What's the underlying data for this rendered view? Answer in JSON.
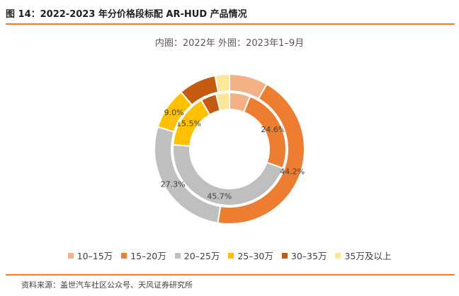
{
  "figure_title": "图 14：2022-2023 年分价格段标配 AR-HUD 产品情况",
  "source": "资料来源：盖世汽车社区公众号、天风证券研究所",
  "chart_data": {
    "type": "donut",
    "title": "内圈：2022年   外圈：2023年1–9月",
    "categories": [
      "10–15万",
      "15–20万",
      "20–25万",
      "25–30万",
      "30–35万",
      "35万及以上"
    ],
    "colors": [
      "#f4b183",
      "#ed7d31",
      "#bfbfbf",
      "#ffc000",
      "#c55a11",
      "#ffe699"
    ],
    "series": [
      {
        "ring": "inner",
        "values": [
          5.9,
          24.6,
          45.7,
          15.5,
          4.5,
          3.8
        ],
        "labels": [
          "",
          "24.6%",
          "45.7%",
          "15.5%",
          "",
          ""
        ]
      },
      {
        "ring": "outer",
        "values": [
          8.3,
          44.2,
          27.3,
          9.0,
          8.1,
          3.1
        ],
        "labels": [
          "",
          "44.2%",
          "27.3%",
          "9.0%",
          "",
          ""
        ]
      }
    ],
    "legend_position": "bottom"
  }
}
